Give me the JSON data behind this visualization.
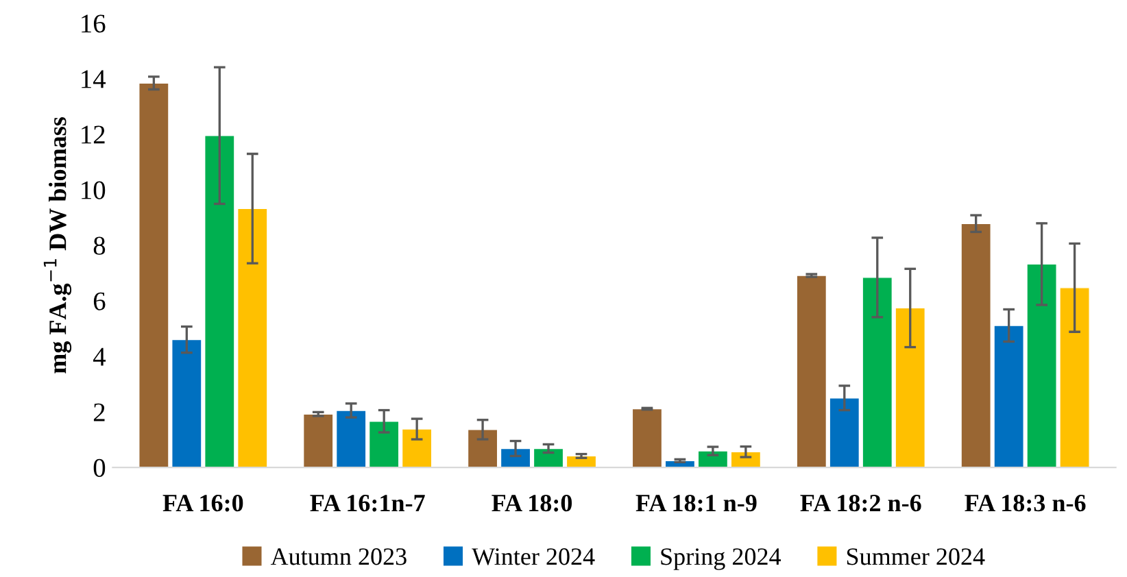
{
  "chart_data": {
    "type": "bar",
    "ylabel": "mg FA.g$^{−1}$ DW biomass",
    "categories": [
      "FA 16:0",
      "FA 16:1n-7",
      "FA 18:0",
      "FA 18:1 n-9",
      "FA 18:2 n-6",
      "FA 18:3 n-6"
    ],
    "series": [
      {
        "name": "Autumn 2023",
        "color": "#996633",
        "values": [
          13.84,
          1.92,
          1.36,
          2.11,
          6.91,
          8.78
        ],
        "errors": [
          0.23,
          0.07,
          0.35,
          0.03,
          0.05,
          0.3
        ]
      },
      {
        "name": "Winter 2024",
        "color": "#0070c0",
        "values": [
          4.6,
          2.05,
          0.68,
          0.24,
          2.5,
          5.11
        ],
        "errors": [
          0.47,
          0.25,
          0.27,
          0.05,
          0.44,
          0.58
        ]
      },
      {
        "name": "Spring 2024",
        "color": "#00b050",
        "values": [
          11.95,
          1.66,
          0.68,
          0.59,
          6.84,
          7.32
        ],
        "errors": [
          2.46,
          0.4,
          0.15,
          0.15,
          1.43,
          1.47
        ]
      },
      {
        "name": "Summer 2024",
        "color": "#ffc000",
        "values": [
          9.32,
          1.38,
          0.41,
          0.56,
          5.74,
          6.47
        ],
        "errors": [
          1.97,
          0.37,
          0.07,
          0.19,
          1.41,
          1.59
        ]
      }
    ],
    "ylim": [
      0,
      16
    ],
    "yticks": [
      0,
      2,
      4,
      6,
      8,
      10,
      12,
      14,
      16
    ],
    "grid": false,
    "legend": "bottom"
  }
}
